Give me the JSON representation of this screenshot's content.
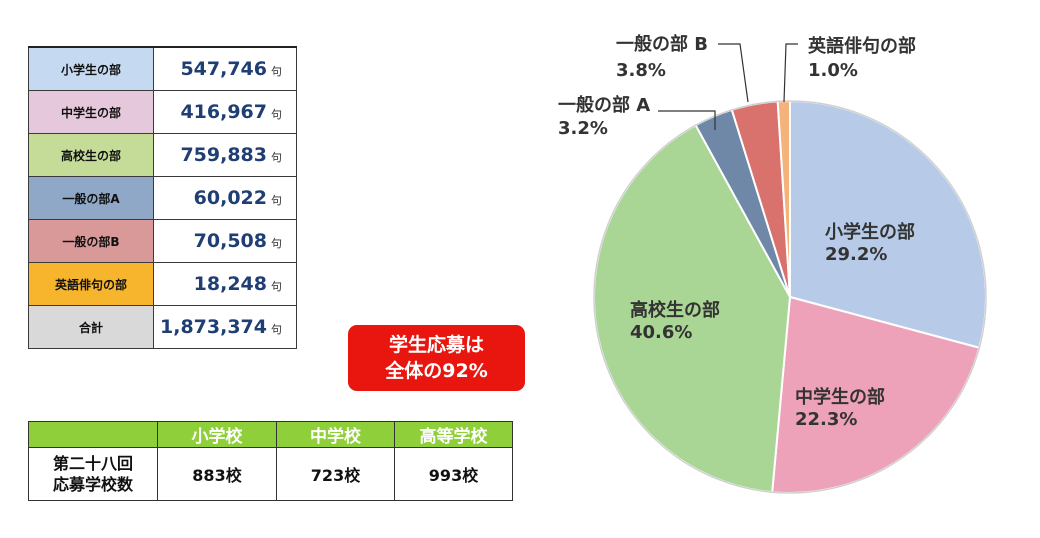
{
  "entries_table": {
    "rows": [
      {
        "label": "小学生の部",
        "value": "547,746",
        "unit": "句",
        "color": "#c5d9f1"
      },
      {
        "label": "中学生の部",
        "value": "416,967",
        "unit": "句",
        "color": "#e6c8dc"
      },
      {
        "label": "高校生の部",
        "value": "759,883",
        "unit": "句",
        "color": "#c4dc97"
      },
      {
        "label": "一般の部A",
        "value": "60,022",
        "unit": "句",
        "color": "#8fa8c8"
      },
      {
        "label": "一般の部B",
        "value": "70,508",
        "unit": "句",
        "color": "#d99999"
      },
      {
        "label": "英語俳句の部",
        "value": "18,248",
        "unit": "句",
        "color": "#f6b52c"
      },
      {
        "label": "合計",
        "value": "1,873,374",
        "unit": "句",
        "color": "#d9d9d9"
      }
    ]
  },
  "callout": {
    "line1": "学生応募は",
    "line2": "全体の92%"
  },
  "schools_table": {
    "headers": [
      "小学校",
      "中学校",
      "高等学校"
    ],
    "row_label_line1": "第二十八回",
    "row_label_line2": "応募学校数",
    "values": [
      "883校",
      "723校",
      "993校"
    ]
  },
  "chart_data": {
    "type": "pie",
    "series": [
      {
        "label": "小学生の部",
        "percent_text": "29.2%",
        "value": 29.2,
        "color": "#b7cbe9"
      },
      {
        "label": "中学生の部",
        "percent_text": "22.3%",
        "value": 22.3,
        "color": "#eda2b9"
      },
      {
        "label": "高校生の部",
        "percent_text": "40.6%",
        "value": 40.6,
        "color": "#a9d595"
      },
      {
        "label": "一般の部 A",
        "percent_text": "3.2%",
        "value": 3.2,
        "color": "#6f88a8"
      },
      {
        "label": "一般の部 B",
        "percent_text": "3.8%",
        "value": 3.8,
        "color": "#d9716c"
      },
      {
        "label": "英語俳句の部",
        "percent_text": "1.0%",
        "value": 1.0,
        "color": "#f4b37a"
      }
    ]
  }
}
